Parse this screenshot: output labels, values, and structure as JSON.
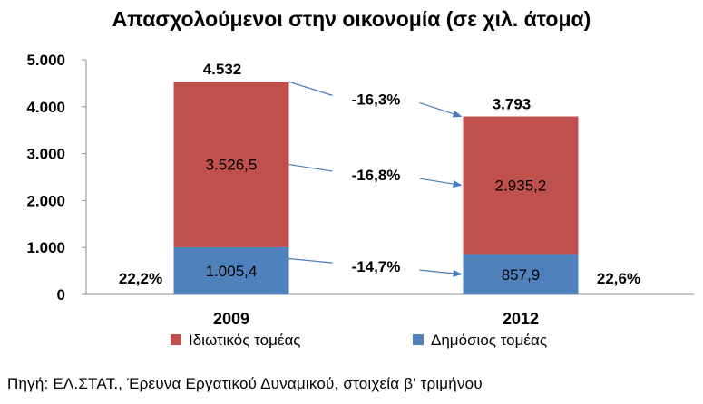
{
  "chart_data": {
    "type": "bar",
    "stacked": true,
    "title": "Απασχολούμενοι στην οικονομία (σε χιλ. άτομα)",
    "categories": [
      "2009",
      "2012"
    ],
    "ylim": [
      0,
      5000
    ],
    "yticks": [
      {
        "value": 0,
        "label": "0"
      },
      {
        "value": 1000,
        "label": "1.000"
      },
      {
        "value": 2000,
        "label": "2.000"
      },
      {
        "value": 3000,
        "label": "3.000"
      },
      {
        "value": 4000,
        "label": "4.000"
      },
      {
        "value": 5000,
        "label": "5.000"
      }
    ],
    "grid": false,
    "legend_position": "bottom",
    "series": [
      {
        "name": "Δημόσιος τομέας",
        "color": "#4F81BD",
        "values": [
          1005.4,
          857.9
        ],
        "labels": [
          "1.005,4",
          "857,9"
        ]
      },
      {
        "name": "Ιδιωτικός τομέας",
        "color": "#C0504D",
        "values": [
          3526.5,
          2935.2
        ],
        "labels": [
          "3.526,5",
          "2.935,2"
        ]
      }
    ],
    "totals": {
      "values": [
        4532,
        3793
      ],
      "labels": [
        "4.532",
        "3.793"
      ]
    },
    "public_share_labels": [
      "22,2%",
      "22,6%"
    ],
    "change_labels": {
      "total": "-16,3%",
      "private": "-16,8%",
      "public": "-14,7%"
    }
  },
  "source_note": "Πηγή:  ΕΛ.ΣΤΑΤ.,  Έρευνα Εργατικού Δυναμικού, στοιχεία β' τριμήνου"
}
